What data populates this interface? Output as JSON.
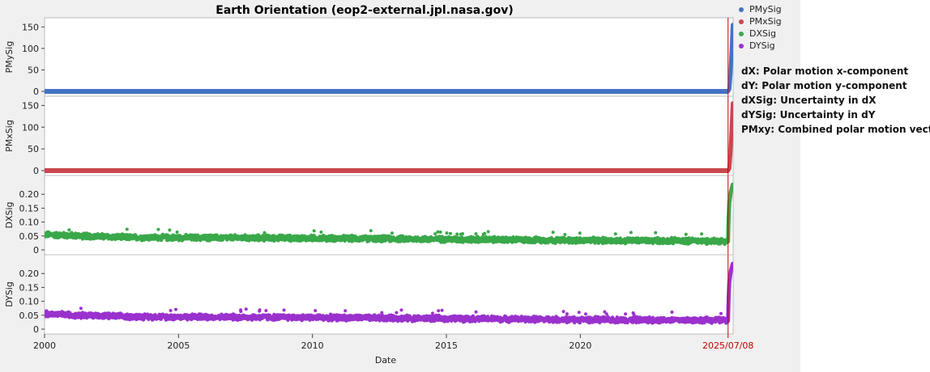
{
  "colors": {
    "PMySig": "#4472c4",
    "PMxSig": "#c9474f",
    "DXSig": "#3aa84a",
    "DYSig": "#9a32cd",
    "refline": "#c00000"
  },
  "legend": [
    {
      "name": "PMySig",
      "color": "#4472c4"
    },
    {
      "name": "PMxSig",
      "color": "#c9474f"
    },
    {
      "name": "DXSig",
      "color": "#3aa84a"
    },
    {
      "name": "DYSig",
      "color": "#9a32cd"
    }
  ],
  "notes": [
    "dX: Polar motion x-component",
    "dY: Polar motion y-component",
    "dXSig: Uncertainty in dX",
    "dYSig: Uncertainty in dY",
    "PMxy: Combined polar motion vector"
  ],
  "chart_data": {
    "type": "scatter",
    "title": "Earth Orientation (eop2-external.jpl.nasa.gov)",
    "xlabel": "Date",
    "x_ticks": [
      "2000",
      "2005",
      "2010",
      "2015",
      "2020"
    ],
    "x_range": [
      "2000-01-01",
      "2025-09-15"
    ],
    "reference_line": {
      "x": "2025-07-08",
      "label": "2025/07/08"
    },
    "grid": false,
    "legend_position": "top-right",
    "panels": [
      {
        "name": "PMySig",
        "ylabel": "PMySig",
        "ylim": [
          0,
          160
        ],
        "yticks": [
          "0",
          "50",
          "100",
          "150"
        ],
        "baseline": 0,
        "noise": 0,
        "ramp": [
          [
            "2025-07-08",
            0
          ],
          [
            "2025-07-25",
            5
          ],
          [
            "2025-08-10",
            40
          ],
          [
            "2025-08-25",
            95
          ],
          [
            "2025-09-10",
            155
          ]
        ]
      },
      {
        "name": "PMxSig",
        "ylabel": "PMxSig",
        "ylim": [
          0,
          160
        ],
        "yticks": [
          "0",
          "50",
          "100",
          "150"
        ],
        "baseline": 0,
        "noise": 0,
        "ramp": [
          [
            "2025-07-08",
            0
          ],
          [
            "2025-07-25",
            5
          ],
          [
            "2025-08-10",
            40
          ],
          [
            "2025-08-25",
            95
          ],
          [
            "2025-09-10",
            155
          ]
        ]
      },
      {
        "name": "DXSig",
        "ylabel": "DXSig",
        "ylim": [
          0,
          0.25
        ],
        "yticks": [
          "0",
          "0.05",
          "0.10",
          "0.15",
          "0.20"
        ],
        "baseline_series": [
          [
            "2000-01-01",
            0.055
          ],
          [
            "2003-01-01",
            0.045
          ],
          [
            "2010-01-01",
            0.042
          ],
          [
            "2015-01-01",
            0.038
          ],
          [
            "2020-01-01",
            0.034
          ],
          [
            "2025-07-01",
            0.032
          ]
        ],
        "noise": 0.012,
        "ramp": [
          [
            "2025-07-08",
            0.03
          ],
          [
            "2025-07-15",
            0.11
          ],
          [
            "2025-07-25",
            0.17
          ],
          [
            "2025-08-15",
            0.21
          ],
          [
            "2025-09-10",
            0.235
          ]
        ]
      },
      {
        "name": "DYSig",
        "ylabel": "DYSig",
        "ylim": [
          0,
          0.25
        ],
        "yticks": [
          "0",
          "0.05",
          "0.10",
          "0.15",
          "0.20"
        ],
        "baseline_series": [
          [
            "2000-01-01",
            0.055
          ],
          [
            "2003-01-01",
            0.045
          ],
          [
            "2010-01-01",
            0.042
          ],
          [
            "2015-01-01",
            0.038
          ],
          [
            "2020-01-01",
            0.034
          ],
          [
            "2025-07-01",
            0.032
          ]
        ],
        "noise": 0.012,
        "ramp": [
          [
            "2025-07-08",
            0.03
          ],
          [
            "2025-07-15",
            0.11
          ],
          [
            "2025-07-25",
            0.17
          ],
          [
            "2025-08-15",
            0.21
          ],
          [
            "2025-09-10",
            0.235
          ]
        ]
      }
    ]
  }
}
